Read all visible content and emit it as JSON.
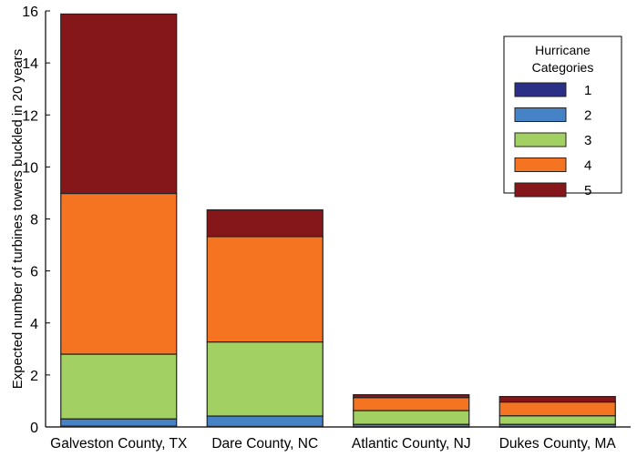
{
  "chart_data": {
    "type": "bar",
    "stacked": true,
    "title": "",
    "xlabel": "",
    "ylabel": "Expected number of turbines towers buckled in 20 years",
    "ylim": [
      0,
      16
    ],
    "yticks": [
      0,
      2,
      4,
      6,
      8,
      10,
      12,
      14,
      16
    ],
    "categories": [
      "Galveston County, TX",
      "Dare County, NC",
      "Atlantic County, NJ",
      "Dukes County, MA"
    ],
    "legend": {
      "title": "Hurricane Categories",
      "placement": "top-right"
    },
    "series": [
      {
        "name": "1",
        "color": "#2b2f86",
        "values": [
          0.03,
          0.02,
          0.01,
          0.01
        ]
      },
      {
        "name": "2",
        "color": "#4683c6",
        "values": [
          0.28,
          0.4,
          0.09,
          0.09
        ]
      },
      {
        "name": "3",
        "color": "#a3d063",
        "values": [
          2.49,
          2.85,
          0.53,
          0.33
        ]
      },
      {
        "name": "4",
        "color": "#f47421",
        "values": [
          6.18,
          4.05,
          0.5,
          0.53
        ]
      },
      {
        "name": "5",
        "color": "#85161a",
        "values": [
          6.9,
          1.03,
          0.11,
          0.21
        ]
      }
    ],
    "grid": false
  }
}
